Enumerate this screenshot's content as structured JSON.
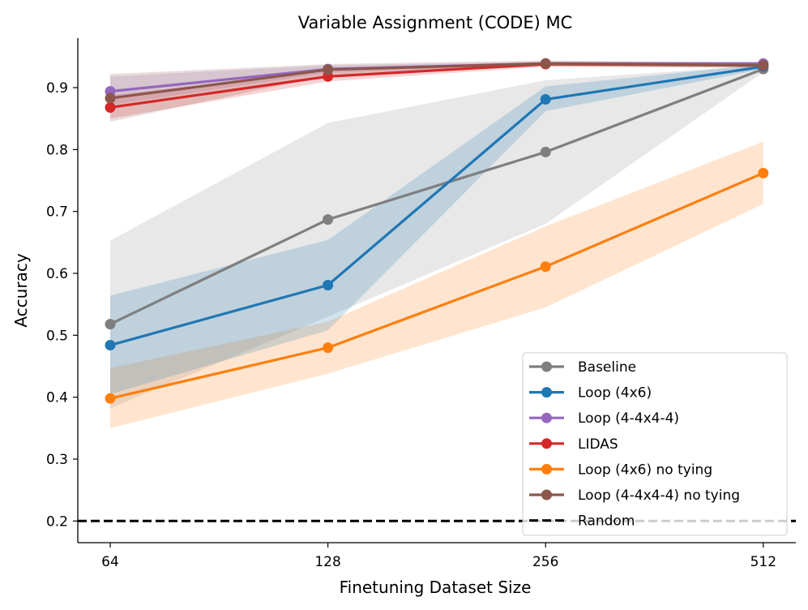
{
  "chart_data": {
    "type": "line",
    "title": "Variable Assignment (CODE) MC",
    "xlabel": "Finetuning Dataset Size",
    "ylabel": "Accuracy",
    "categories": [
      "64",
      "128",
      "256",
      "512"
    ],
    "yticks": [
      "0.2",
      "0.3",
      "0.4",
      "0.5",
      "0.6",
      "0.7",
      "0.8",
      "0.9"
    ],
    "ylim": [
      0.165,
      0.98
    ],
    "legend_position": "lower-right",
    "grid": false,
    "series": [
      {
        "name": "Baseline",
        "color": "#7f7f7f",
        "values": [
          0.518,
          0.687,
          0.796,
          0.93
        ],
        "lower": [
          0.382,
          0.53,
          0.68,
          0.925
        ],
        "upper": [
          0.653,
          0.843,
          0.912,
          0.936
        ]
      },
      {
        "name": "Loop (4x6)",
        "color": "#1f77b4",
        "values": [
          0.484,
          0.581,
          0.881,
          0.934
        ],
        "lower": [
          0.405,
          0.508,
          0.862,
          0.93
        ],
        "upper": [
          0.564,
          0.654,
          0.902,
          0.938
        ]
      },
      {
        "name": "Loop (4-4x4-4)",
        "color": "#9467bd",
        "values": [
          0.894,
          0.93,
          0.939,
          0.939
        ],
        "lower": [
          0.872,
          0.924,
          0.936,
          0.936
        ],
        "upper": [
          0.918,
          0.936,
          0.942,
          0.942
        ]
      },
      {
        "name": "LIDAS",
        "color": "#d62728",
        "values": [
          0.868,
          0.918,
          0.938,
          0.936
        ],
        "lower": [
          0.85,
          0.91,
          0.934,
          0.933
        ],
        "upper": [
          0.888,
          0.926,
          0.942,
          0.94
        ]
      },
      {
        "name": "Loop (4x6) no tying",
        "color": "#ff7f0e",
        "values": [
          0.398,
          0.48,
          0.611,
          0.762
        ],
        "lower": [
          0.35,
          0.438,
          0.545,
          0.712
        ],
        "upper": [
          0.447,
          0.522,
          0.676,
          0.813
        ]
      },
      {
        "name": "Loop (4-4x4-4) no tying",
        "color": "#8c564b",
        "values": [
          0.883,
          0.929,
          0.939,
          0.936
        ],
        "lower": [
          0.845,
          0.92,
          0.934,
          0.932
        ],
        "upper": [
          0.922,
          0.938,
          0.944,
          0.94
        ]
      }
    ],
    "reference_line": {
      "name": "Random",
      "value": 0.2,
      "color": "#000000"
    },
    "draw_order": [
      0,
      4,
      1,
      2,
      3,
      5
    ]
  }
}
